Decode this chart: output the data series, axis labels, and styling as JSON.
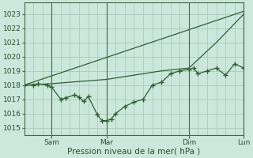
{
  "background_color": "#cce8dc",
  "grid_color": "#aaccbb",
  "line_color": "#2d6030",
  "ylabel_text": "Pression niveau de la mer( hPa )",
  "ylim": [
    1014.5,
    1023.8
  ],
  "yticks": [
    1015,
    1016,
    1017,
    1018,
    1019,
    1020,
    1021,
    1022,
    1023
  ],
  "xlim": [
    0,
    48
  ],
  "total_pts": 48,
  "vline_positions": [
    6,
    18,
    36,
    48
  ],
  "xtick_positions": [
    6,
    18,
    36,
    48
  ],
  "xtick_labels": [
    "Sam",
    "Mar",
    "Dim",
    "Lun"
  ],
  "line1_x": [
    0,
    2,
    3,
    5,
    6,
    8,
    9,
    11,
    12,
    13,
    14,
    16,
    17,
    18,
    19,
    20,
    22,
    24,
    26,
    28,
    30,
    32,
    34,
    36,
    37,
    38,
    40,
    42,
    44,
    46,
    48
  ],
  "line1_y": [
    1018.0,
    1018.0,
    1018.1,
    1018.0,
    1017.85,
    1017.0,
    1017.1,
    1017.3,
    1017.15,
    1016.85,
    1017.2,
    1015.9,
    1015.5,
    1015.5,
    1015.6,
    1016.0,
    1016.5,
    1016.8,
    1017.0,
    1018.0,
    1018.2,
    1018.8,
    1019.0,
    1019.1,
    1019.2,
    1018.8,
    1019.0,
    1019.2,
    1018.7,
    1019.5,
    1019.2
  ],
  "line2_x": [
    0,
    6,
    12,
    18,
    24,
    30,
    36,
    42,
    48
  ],
  "line2_y": [
    1018.0,
    1018.1,
    1018.25,
    1018.4,
    1018.7,
    1019.0,
    1019.2,
    1021.0,
    1023.0
  ],
  "line3_x": [
    0,
    48
  ],
  "line3_y": [
    1018.0,
    1023.2
  ]
}
